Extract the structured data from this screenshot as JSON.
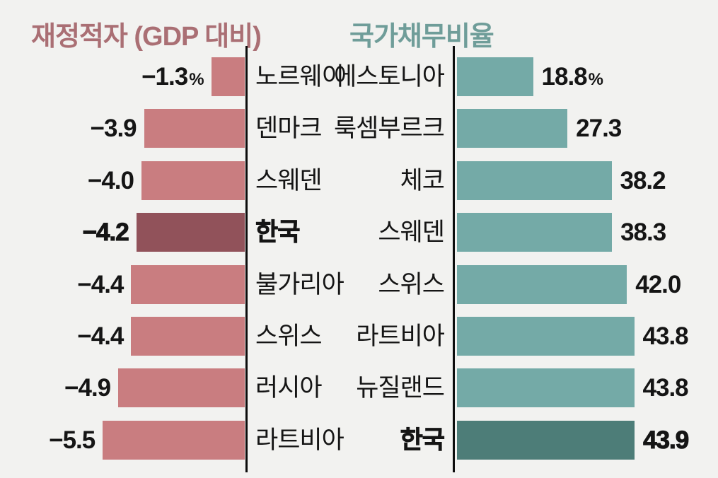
{
  "colors": {
    "background": "#f2f2f0",
    "axis": "#0c0c0c",
    "text": "#151515",
    "deficit_bar": "#c97d80",
    "deficit_highlight": "#91525a",
    "deficit_title": "#aa6f74",
    "debt_bar": "#74aaa7",
    "debt_highlight": "#4d7d78",
    "debt_title": "#6f9d99"
  },
  "chart_data": [
    {
      "type": "bar",
      "orientation": "horizontal-left",
      "title": "재정적자 (GDP 대비)",
      "unit": "%",
      "categories": [
        "노르웨이",
        "덴마크",
        "스웨덴",
        "한국",
        "불가리아",
        "스위스",
        "러시아",
        "라트비아"
      ],
      "values": [
        -1.3,
        -3.9,
        -4.0,
        -4.2,
        -4.4,
        -4.4,
        -4.9,
        -5.5
      ],
      "value_labels": [
        "−1.3",
        "−3.9",
        "−4.0",
        "−4.2",
        "−4.4",
        "−4.4",
        "−4.9",
        "−5.5"
      ],
      "suffixes": [
        "%",
        "",
        "",
        "",
        "",
        "",
        "",
        ""
      ],
      "highlight_index": 3,
      "highlight_category": "한국",
      "bar_color": "#c97d80",
      "highlight_color": "#91525a",
      "title_color": "#aa6f74",
      "xlim": [
        -5.5,
        0
      ],
      "grid": false,
      "legend": false
    },
    {
      "type": "bar",
      "orientation": "horizontal-right",
      "title": "국가채무비율",
      "unit": "%",
      "categories": [
        "에스토니아",
        "룩셈부르크",
        "체코",
        "스웨덴",
        "스위스",
        "라트비아",
        "뉴질랜드",
        "한국"
      ],
      "values": [
        18.8,
        27.3,
        38.2,
        38.3,
        42.0,
        43.8,
        43.8,
        43.9
      ],
      "value_labels": [
        "18.8",
        "27.3",
        "38.2",
        "38.3",
        "42.0",
        "43.8",
        "43.8",
        "43.9"
      ],
      "suffixes": [
        "%",
        "",
        "",
        "",
        "",
        "",
        "",
        ""
      ],
      "highlight_index": 7,
      "highlight_category": "한국",
      "bar_color": "#74aaa7",
      "highlight_color": "#4d7d78",
      "title_color": "#6f9d99",
      "xlim": [
        0,
        43.9
      ],
      "grid": false,
      "legend": false
    }
  ]
}
